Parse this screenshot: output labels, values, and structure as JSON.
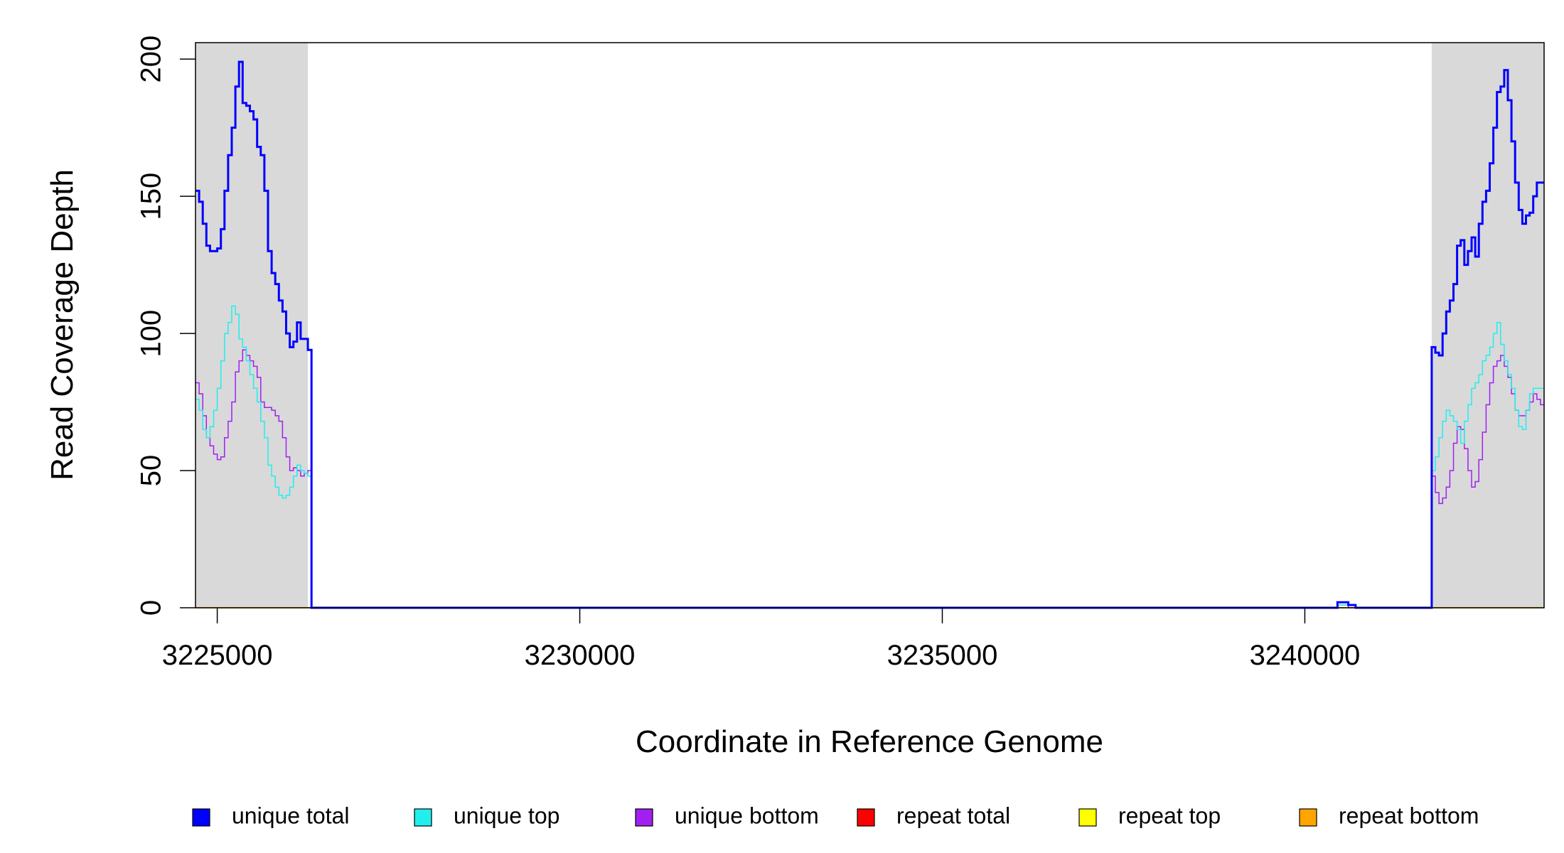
{
  "chart_data": {
    "type": "step",
    "y_label": "Read Coverage Depth",
    "x_label": "Coordinate in Reference Genome",
    "xlim": [
      3224700,
      3243300
    ],
    "ylim": [
      0,
      206
    ],
    "xticks": [
      3225000,
      3230000,
      3235000,
      3240000
    ],
    "yticks": [
      0,
      50,
      100,
      150,
      200
    ],
    "shaded_regions": [
      [
        3224700,
        3226250
      ],
      [
        3241750,
        3243300
      ]
    ],
    "shade_color": "#d9d9d9",
    "x": [
      3224700,
      3224750,
      3224800,
      3224850,
      3224900,
      3224950,
      3225000,
      3225050,
      3225100,
      3225150,
      3225200,
      3225250,
      3225300,
      3225350,
      3225400,
      3225450,
      3225500,
      3225550,
      3225600,
      3225650,
      3225700,
      3225750,
      3225800,
      3225850,
      3225900,
      3225950,
      3226000,
      3226050,
      3226100,
      3226150,
      3226200,
      3226250,
      3226300,
      3240400,
      3240450,
      3240600,
      3240700,
      3241750,
      3241800,
      3241850,
      3241900,
      3241950,
      3242000,
      3242050,
      3242100,
      3242150,
      3242200,
      3242250,
      3242300,
      3242350,
      3242400,
      3242450,
      3242500,
      3242550,
      3242600,
      3242650,
      3242700,
      3242750,
      3242800,
      3242850,
      3242900,
      3242950,
      3243000,
      3243050,
      3243100,
      3243150,
      3243200,
      3243250
    ],
    "series": [
      {
        "name": "unique total",
        "color": "#0000ff",
        "width": 3,
        "values": [
          152,
          148,
          140,
          132,
          130,
          130,
          131,
          138,
          152,
          165,
          175,
          190,
          199,
          184,
          183,
          181,
          178,
          168,
          165,
          152,
          130,
          122,
          118,
          112,
          108,
          100,
          95,
          97,
          104,
          98,
          98,
          94,
          0,
          0,
          2,
          1,
          0,
          95,
          93,
          92,
          100,
          108,
          112,
          118,
          132,
          134,
          125,
          130,
          135,
          128,
          140,
          148,
          152,
          162,
          175,
          188,
          190,
          196,
          185,
          170,
          155,
          145,
          140,
          143,
          144,
          150,
          155,
          155
        ]
      },
      {
        "name": "unique top",
        "color": "#22eeee",
        "width": 1.5,
        "values": [
          76,
          72,
          65,
          62,
          66,
          72,
          80,
          90,
          100,
          104,
          110,
          107,
          98,
          95,
          90,
          85,
          80,
          75,
          68,
          62,
          52,
          48,
          44,
          41,
          40,
          41,
          44,
          48,
          52,
          50,
          49,
          48,
          0,
          0,
          1,
          1,
          0,
          50,
          55,
          62,
          68,
          72,
          70,
          68,
          65,
          60,
          68,
          74,
          80,
          82,
          85,
          90,
          92,
          95,
          100,
          104,
          96,
          90,
          85,
          80,
          72,
          66,
          65,
          72,
          78,
          80,
          80,
          80
        ]
      },
      {
        "name": "unique bottom",
        "color": "#a020f0",
        "width": 1.5,
        "values": [
          82,
          78,
          70,
          62,
          59,
          56,
          54,
          55,
          62,
          68,
          75,
          86,
          90,
          94,
          92,
          90,
          88,
          84,
          75,
          73,
          73,
          72,
          70,
          68,
          62,
          55,
          50,
          51,
          50,
          48,
          49,
          50,
          0,
          0,
          1,
          0,
          0,
          48,
          42,
          38,
          40,
          44,
          50,
          60,
          66,
          65,
          58,
          50,
          44,
          46,
          54,
          64,
          74,
          82,
          88,
          90,
          92,
          88,
          84,
          78,
          72,
          70,
          70,
          72,
          75,
          78,
          76,
          74
        ]
      },
      {
        "name": "repeat total",
        "color": "#ff0000",
        "width": 1.5,
        "values": [
          0,
          0,
          0,
          0,
          0,
          0,
          0,
          0,
          0,
          0,
          0,
          0,
          0,
          0,
          0,
          0,
          0,
          0,
          0,
          0,
          0,
          0,
          0,
          0,
          0,
          0,
          0,
          0,
          0,
          0,
          0,
          0,
          0,
          0,
          0,
          0,
          0,
          0,
          0,
          0,
          0,
          0,
          0,
          0,
          0,
          0,
          0,
          0,
          0,
          0,
          0,
          0,
          0,
          0,
          0,
          0,
          0,
          0,
          0,
          0,
          0,
          0,
          0,
          0,
          0,
          0,
          0,
          0
        ]
      },
      {
        "name": "repeat top",
        "color": "#ffff00",
        "width": 1.5,
        "values": [
          0,
          0,
          0,
          0,
          0,
          0,
          0,
          0,
          0,
          0,
          0,
          0,
          0,
          0,
          0,
          0,
          0,
          0,
          0,
          0,
          0,
          0,
          0,
          0,
          0,
          0,
          0,
          0,
          0,
          0,
          0,
          0,
          0,
          0,
          0,
          0,
          0,
          0,
          0,
          0,
          0,
          0,
          0,
          0,
          0,
          0,
          0,
          0,
          0,
          0,
          0,
          0,
          0,
          0,
          0,
          0,
          0,
          0,
          0,
          0,
          0,
          0,
          0,
          0,
          0,
          0,
          0,
          0
        ]
      },
      {
        "name": "repeat bottom",
        "color": "#ffa500",
        "width": 1.5,
        "values": [
          0,
          0,
          0,
          0,
          0,
          0,
          0,
          0,
          0,
          0,
          0,
          0,
          0,
          0,
          0,
          0,
          0,
          0,
          0,
          0,
          0,
          0,
          0,
          0,
          0,
          0,
          0,
          0,
          0,
          0,
          0,
          0,
          0,
          0,
          0,
          0,
          0,
          0,
          0,
          0,
          0,
          0,
          0,
          0,
          0,
          0,
          0,
          0,
          0,
          0,
          0,
          0,
          0,
          0,
          0,
          0,
          0,
          0,
          0,
          0,
          0,
          0,
          0,
          0,
          0,
          0,
          0,
          0
        ]
      }
    ],
    "legend": "bottom"
  }
}
